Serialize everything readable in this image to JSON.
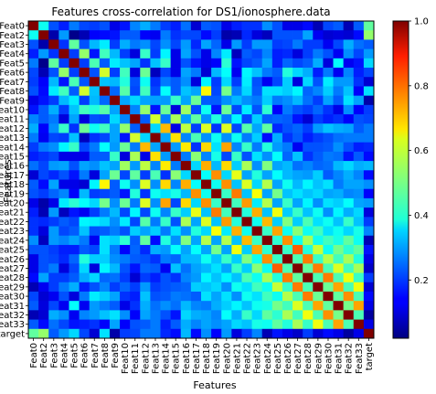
{
  "chart_data": {
    "type": "heatmap",
    "title": "Features cross-correlation for DS1/ionosphere.data",
    "xlabel": "Features",
    "ylabel": "Features",
    "labels": [
      "Feat0",
      "Feat2",
      "Feat3",
      "Feat4",
      "Feat5",
      "Feat6",
      "Feat7",
      "Feat8",
      "Feat9",
      "Feat10",
      "Feat11",
      "Feat12",
      "Feat13",
      "Feat14",
      "Feat15",
      "Feat16",
      "Feat17",
      "Feat18",
      "Feat19",
      "Feat20",
      "Feat21",
      "Feat22",
      "Feat23",
      "Feat24",
      "Feat25",
      "Feat26",
      "Feat27",
      "Feat28",
      "Feat29",
      "Feat30",
      "Feat31",
      "Feat32",
      "Feat33",
      "target"
    ],
    "colormap": "jet",
    "value_range": [
      0.02,
      1.0
    ],
    "colorbar_ticks": [
      0.2,
      0.4,
      0.6,
      0.8,
      1.0
    ],
    "colorbar_tick_labels": [
      "0.2",
      "0.4",
      "0.6",
      "0.8",
      "1.0"
    ],
    "diagonal_value": 1.0,
    "values": [
      [
        1.0,
        0.4,
        0.22,
        0.17,
        0.26,
        0.21,
        0.2,
        0.22,
        0.12,
        0.16,
        0.27,
        0.31,
        0.26,
        0.2,
        0.17,
        0.25,
        0.1,
        0.23,
        0.22,
        0.12,
        0.17,
        0.19,
        0.19,
        0.28,
        0.22,
        0.12,
        0.12,
        0.15,
        0.07,
        0.21,
        0.23,
        0.07,
        0.23,
        0.48
      ],
      [
        0.4,
        1.0,
        0.06,
        0.29,
        0.03,
        0.07,
        0.14,
        0.15,
        0.16,
        0.23,
        0.23,
        0.14,
        0.13,
        0.26,
        0.19,
        0.21,
        0.21,
        0.15,
        0.2,
        0.06,
        0.07,
        0.18,
        0.11,
        0.08,
        0.22,
        0.22,
        0.22,
        0.3,
        0.13,
        0.1,
        0.11,
        0.1,
        0.15,
        0.53
      ],
      [
        0.22,
        0.06,
        1.0,
        0.19,
        0.48,
        0.22,
        0.32,
        0.37,
        0.2,
        0.31,
        0.26,
        0.28,
        0.21,
        0.28,
        0.21,
        0.29,
        0.18,
        0.3,
        0.24,
        0.12,
        0.29,
        0.2,
        0.29,
        0.29,
        0.2,
        0.21,
        0.26,
        0.2,
        0.2,
        0.13,
        0.21,
        0.31,
        0.25,
        0.23
      ],
      [
        0.17,
        0.29,
        0.19,
        1.0,
        0.2,
        0.53,
        0.16,
        0.45,
        0.32,
        0.2,
        0.11,
        0.44,
        0.2,
        0.38,
        0.12,
        0.3,
        0.22,
        0.12,
        0.27,
        0.37,
        0.08,
        0.23,
        0.21,
        0.27,
        0.17,
        0.18,
        0.11,
        0.2,
        0.26,
        0.22,
        0.13,
        0.28,
        0.21,
        0.29
      ],
      [
        0.26,
        0.03,
        0.48,
        0.2,
        1.0,
        0.2,
        0.46,
        0.23,
        0.37,
        0.33,
        0.3,
        0.19,
        0.33,
        0.44,
        0.12,
        0.22,
        0.16,
        0.12,
        0.14,
        0.43,
        0.16,
        0.21,
        0.23,
        0.3,
        0.17,
        0.24,
        0.21,
        0.23,
        0.31,
        0.11,
        0.39,
        0.13,
        0.16,
        0.35
      ],
      [
        0.21,
        0.07,
        0.22,
        0.53,
        0.2,
        1.0,
        0.22,
        0.59,
        0.2,
        0.45,
        0.11,
        0.49,
        0.08,
        0.21,
        0.12,
        0.3,
        0.26,
        0.1,
        0.32,
        0.39,
        0.13,
        0.38,
        0.33,
        0.26,
        0.23,
        0.42,
        0.35,
        0.31,
        0.17,
        0.26,
        0.13,
        0.27,
        0.17,
        0.21
      ],
      [
        0.2,
        0.14,
        0.32,
        0.16,
        0.46,
        0.22,
        1.0,
        0.33,
        0.32,
        0.42,
        0.22,
        0.4,
        0.19,
        0.26,
        0.23,
        0.28,
        0.11,
        0.38,
        0.2,
        0.35,
        0.2,
        0.37,
        0.22,
        0.13,
        0.21,
        0.34,
        0.11,
        0.35,
        0.22,
        0.37,
        0.29,
        0.29,
        0.19,
        0.1
      ],
      [
        0.22,
        0.15,
        0.37,
        0.45,
        0.23,
        0.59,
        0.33,
        1.0,
        0.24,
        0.47,
        0.21,
        0.45,
        0.21,
        0.39,
        0.23,
        0.33,
        0.3,
        0.64,
        0.21,
        0.5,
        0.26,
        0.35,
        0.23,
        0.36,
        0.36,
        0.34,
        0.38,
        0.24,
        0.27,
        0.34,
        0.26,
        0.33,
        0.14,
        0.36
      ],
      [
        0.12,
        0.16,
        0.2,
        0.32,
        0.37,
        0.2,
        0.32,
        0.24,
        1.0,
        0.3,
        0.35,
        0.3,
        0.3,
        0.29,
        0.44,
        0.3,
        0.49,
        0.23,
        0.23,
        0.28,
        0.32,
        0.28,
        0.26,
        0.34,
        0.26,
        0.28,
        0.32,
        0.25,
        0.2,
        0.3,
        0.23,
        0.36,
        0.3,
        0.06
      ],
      [
        0.16,
        0.23,
        0.31,
        0.2,
        0.33,
        0.45,
        0.42,
        0.47,
        0.3,
        1.0,
        0.27,
        0.53,
        0.16,
        0.49,
        0.11,
        0.54,
        0.21,
        0.4,
        0.16,
        0.49,
        0.21,
        0.37,
        0.22,
        0.43,
        0.14,
        0.26,
        0.22,
        0.2,
        0.24,
        0.19,
        0.12,
        0.28,
        0.14,
        0.2
      ],
      [
        0.27,
        0.23,
        0.26,
        0.11,
        0.3,
        0.11,
        0.22,
        0.21,
        0.35,
        0.27,
        1.0,
        0.23,
        0.59,
        0.26,
        0.55,
        0.29,
        0.48,
        0.28,
        0.42,
        0.26,
        0.38,
        0.21,
        0.34,
        0.23,
        0.24,
        0.23,
        0.16,
        0.1,
        0.2,
        0.17,
        0.19,
        0.14,
        0.22,
        0.21
      ],
      [
        0.31,
        0.14,
        0.28,
        0.44,
        0.19,
        0.49,
        0.4,
        0.45,
        0.3,
        0.53,
        0.23,
        1.0,
        0.35,
        0.7,
        0.12,
        0.57,
        0.2,
        0.6,
        0.19,
        0.6,
        0.21,
        0.47,
        0.3,
        0.48,
        0.18,
        0.22,
        0.24,
        0.2,
        0.29,
        0.33,
        0.31,
        0.3,
        0.23,
        0.26
      ],
      [
        0.26,
        0.13,
        0.21,
        0.2,
        0.33,
        0.08,
        0.19,
        0.21,
        0.3,
        0.16,
        0.59,
        0.35,
        1.0,
        0.3,
        0.66,
        0.27,
        0.46,
        0.28,
        0.4,
        0.28,
        0.4,
        0.26,
        0.34,
        0.15,
        0.31,
        0.19,
        0.23,
        0.17,
        0.2,
        0.22,
        0.25,
        0.26,
        0.26,
        0.26
      ],
      [
        0.2,
        0.26,
        0.28,
        0.38,
        0.44,
        0.21,
        0.26,
        0.39,
        0.29,
        0.49,
        0.26,
        0.7,
        0.3,
        1.0,
        0.29,
        0.65,
        0.19,
        0.67,
        0.36,
        0.72,
        0.27,
        0.44,
        0.26,
        0.42,
        0.29,
        0.26,
        0.13,
        0.22,
        0.22,
        0.23,
        0.28,
        0.22,
        0.17,
        0.18
      ],
      [
        0.17,
        0.19,
        0.21,
        0.12,
        0.12,
        0.12,
        0.23,
        0.23,
        0.44,
        0.11,
        0.55,
        0.12,
        0.66,
        0.29,
        1.0,
        0.26,
        0.52,
        0.27,
        0.41,
        0.21,
        0.44,
        0.22,
        0.36,
        0.28,
        0.39,
        0.24,
        0.33,
        0.19,
        0.23,
        0.26,
        0.25,
        0.16,
        0.23,
        0.15
      ],
      [
        0.25,
        0.21,
        0.29,
        0.3,
        0.22,
        0.3,
        0.28,
        0.33,
        0.3,
        0.54,
        0.29,
        0.57,
        0.27,
        0.65,
        0.26,
        1.0,
        0.35,
        0.71,
        0.32,
        0.67,
        0.34,
        0.55,
        0.28,
        0.51,
        0.3,
        0.32,
        0.25,
        0.27,
        0.24,
        0.25,
        0.32,
        0.35,
        0.31,
        0.32
      ],
      [
        0.1,
        0.21,
        0.18,
        0.22,
        0.16,
        0.26,
        0.11,
        0.3,
        0.49,
        0.21,
        0.48,
        0.2,
        0.46,
        0.19,
        0.52,
        0.35,
        1.0,
        0.39,
        0.74,
        0.35,
        0.61,
        0.3,
        0.42,
        0.3,
        0.39,
        0.32,
        0.3,
        0.29,
        0.34,
        0.23,
        0.27,
        0.31,
        0.27,
        0.15
      ],
      [
        0.23,
        0.15,
        0.3,
        0.12,
        0.12,
        0.1,
        0.38,
        0.64,
        0.23,
        0.4,
        0.28,
        0.6,
        0.28,
        0.67,
        0.27,
        0.71,
        0.39,
        1.0,
        0.4,
        0.74,
        0.33,
        0.6,
        0.35,
        0.56,
        0.3,
        0.4,
        0.32,
        0.38,
        0.33,
        0.36,
        0.26,
        0.3,
        0.3,
        0.28
      ],
      [
        0.22,
        0.2,
        0.24,
        0.27,
        0.14,
        0.32,
        0.2,
        0.21,
        0.23,
        0.16,
        0.42,
        0.19,
        0.4,
        0.36,
        0.41,
        0.32,
        0.74,
        0.4,
        1.0,
        0.44,
        0.76,
        0.33,
        0.63,
        0.3,
        0.5,
        0.33,
        0.36,
        0.33,
        0.35,
        0.3,
        0.31,
        0.27,
        0.28,
        0.14
      ],
      [
        0.12,
        0.06,
        0.12,
        0.37,
        0.43,
        0.39,
        0.35,
        0.5,
        0.28,
        0.49,
        0.26,
        0.6,
        0.28,
        0.72,
        0.21,
        0.67,
        0.35,
        0.74,
        0.44,
        1.0,
        0.45,
        0.73,
        0.37,
        0.56,
        0.3,
        0.44,
        0.3,
        0.38,
        0.28,
        0.36,
        0.34,
        0.39,
        0.3,
        0.29
      ],
      [
        0.17,
        0.07,
        0.29,
        0.08,
        0.16,
        0.13,
        0.2,
        0.26,
        0.32,
        0.21,
        0.38,
        0.21,
        0.4,
        0.27,
        0.44,
        0.34,
        0.61,
        0.33,
        0.76,
        0.45,
        1.0,
        0.42,
        0.71,
        0.33,
        0.62,
        0.34,
        0.44,
        0.33,
        0.4,
        0.28,
        0.38,
        0.31,
        0.35,
        0.11
      ],
      [
        0.19,
        0.18,
        0.2,
        0.23,
        0.21,
        0.38,
        0.37,
        0.35,
        0.28,
        0.37,
        0.21,
        0.47,
        0.26,
        0.44,
        0.22,
        0.55,
        0.3,
        0.6,
        0.33,
        0.73,
        0.42,
        1.0,
        0.4,
        0.7,
        0.34,
        0.51,
        0.34,
        0.46,
        0.36,
        0.4,
        0.33,
        0.44,
        0.33,
        0.2
      ],
      [
        0.19,
        0.11,
        0.29,
        0.21,
        0.23,
        0.33,
        0.22,
        0.23,
        0.26,
        0.22,
        0.34,
        0.3,
        0.34,
        0.26,
        0.36,
        0.28,
        0.42,
        0.35,
        0.63,
        0.37,
        0.71,
        0.4,
        1.0,
        0.44,
        0.72,
        0.4,
        0.52,
        0.4,
        0.45,
        0.36,
        0.4,
        0.35,
        0.41,
        0.27
      ],
      [
        0.28,
        0.08,
        0.29,
        0.27,
        0.3,
        0.26,
        0.13,
        0.36,
        0.34,
        0.43,
        0.23,
        0.48,
        0.15,
        0.42,
        0.28,
        0.51,
        0.3,
        0.56,
        0.3,
        0.56,
        0.33,
        0.7,
        0.44,
        1.0,
        0.43,
        0.74,
        0.4,
        0.55,
        0.4,
        0.45,
        0.41,
        0.48,
        0.4,
        0.07
      ],
      [
        0.22,
        0.22,
        0.2,
        0.17,
        0.17,
        0.23,
        0.21,
        0.36,
        0.26,
        0.14,
        0.24,
        0.18,
        0.31,
        0.29,
        0.39,
        0.3,
        0.39,
        0.3,
        0.5,
        0.3,
        0.62,
        0.34,
        0.72,
        0.43,
        1.0,
        0.44,
        0.79,
        0.42,
        0.58,
        0.4,
        0.5,
        0.43,
        0.48,
        0.16
      ],
      [
        0.12,
        0.22,
        0.21,
        0.18,
        0.24,
        0.42,
        0.34,
        0.34,
        0.28,
        0.26,
        0.23,
        0.22,
        0.19,
        0.26,
        0.24,
        0.32,
        0.32,
        0.4,
        0.33,
        0.44,
        0.34,
        0.51,
        0.4,
        0.74,
        0.44,
        1.0,
        0.46,
        0.76,
        0.44,
        0.56,
        0.45,
        0.55,
        0.42,
        0.12
      ],
      [
        0.12,
        0.22,
        0.26,
        0.11,
        0.21,
        0.35,
        0.11,
        0.38,
        0.32,
        0.22,
        0.16,
        0.24,
        0.23,
        0.13,
        0.33,
        0.25,
        0.3,
        0.32,
        0.36,
        0.3,
        0.44,
        0.34,
        0.52,
        0.4,
        0.79,
        0.46,
        1.0,
        0.48,
        0.76,
        0.46,
        0.6,
        0.45,
        0.55,
        0.09
      ],
      [
        0.15,
        0.3,
        0.2,
        0.2,
        0.23,
        0.31,
        0.35,
        0.24,
        0.25,
        0.2,
        0.1,
        0.2,
        0.17,
        0.22,
        0.19,
        0.27,
        0.29,
        0.38,
        0.33,
        0.38,
        0.33,
        0.46,
        0.4,
        0.55,
        0.42,
        0.76,
        0.48,
        1.0,
        0.46,
        0.76,
        0.46,
        0.62,
        0.44,
        0.2
      ],
      [
        0.07,
        0.13,
        0.2,
        0.26,
        0.31,
        0.17,
        0.22,
        0.27,
        0.2,
        0.24,
        0.2,
        0.29,
        0.2,
        0.22,
        0.23,
        0.24,
        0.34,
        0.33,
        0.35,
        0.28,
        0.4,
        0.36,
        0.45,
        0.4,
        0.58,
        0.44,
        0.76,
        0.46,
        1.0,
        0.49,
        0.72,
        0.46,
        0.62,
        0.1
      ],
      [
        0.21,
        0.1,
        0.13,
        0.22,
        0.11,
        0.26,
        0.37,
        0.34,
        0.3,
        0.19,
        0.17,
        0.33,
        0.22,
        0.23,
        0.26,
        0.25,
        0.23,
        0.36,
        0.3,
        0.36,
        0.28,
        0.4,
        0.36,
        0.45,
        0.4,
        0.56,
        0.46,
        0.76,
        0.49,
        1.0,
        0.48,
        0.74,
        0.46,
        0.15
      ],
      [
        0.23,
        0.11,
        0.21,
        0.13,
        0.39,
        0.13,
        0.29,
        0.26,
        0.23,
        0.12,
        0.19,
        0.31,
        0.25,
        0.28,
        0.25,
        0.32,
        0.27,
        0.26,
        0.31,
        0.34,
        0.38,
        0.33,
        0.4,
        0.41,
        0.5,
        0.45,
        0.6,
        0.46,
        0.72,
        0.48,
        1.0,
        0.5,
        0.72,
        0.12
      ],
      [
        0.07,
        0.1,
        0.31,
        0.28,
        0.13,
        0.27,
        0.29,
        0.33,
        0.36,
        0.28,
        0.14,
        0.3,
        0.26,
        0.22,
        0.16,
        0.35,
        0.31,
        0.3,
        0.27,
        0.39,
        0.31,
        0.44,
        0.35,
        0.48,
        0.43,
        0.55,
        0.45,
        0.62,
        0.46,
        0.74,
        0.5,
        1.0,
        0.46,
        0.05
      ],
      [
        0.23,
        0.15,
        0.25,
        0.21,
        0.16,
        0.17,
        0.19,
        0.14,
        0.3,
        0.14,
        0.22,
        0.23,
        0.26,
        0.17,
        0.23,
        0.31,
        0.27,
        0.3,
        0.28,
        0.3,
        0.35,
        0.33,
        0.41,
        0.4,
        0.48,
        0.42,
        0.55,
        0.44,
        0.62,
        0.46,
        0.72,
        0.46,
        1.0,
        0.12
      ],
      [
        0.48,
        0.53,
        0.23,
        0.29,
        0.35,
        0.21,
        0.1,
        0.36,
        0.06,
        0.2,
        0.21,
        0.26,
        0.26,
        0.18,
        0.15,
        0.32,
        0.15,
        0.28,
        0.14,
        0.29,
        0.11,
        0.2,
        0.27,
        0.07,
        0.16,
        0.12,
        0.09,
        0.2,
        0.1,
        0.15,
        0.12,
        0.05,
        0.12,
        1.0
      ]
    ]
  }
}
